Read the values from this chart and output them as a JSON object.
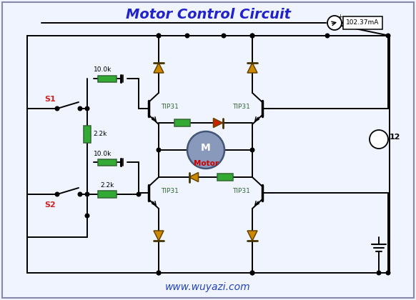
{
  "title": "Motor Control Circuit",
  "title_color": "#2222CC",
  "title_fontsize": 14,
  "bg_color": "#F0F4FF",
  "line_color": "#000000",
  "green_color": "#33AA33",
  "red_color": "#CC2200",
  "motor_fill": "#8899BB",
  "motor_edge": "#445577",
  "orange_diode": "#CC8800",
  "watermark": "www.wuyazi.com",
  "watermark_color": "#2244BB",
  "ammeter_text": "102.37mA",
  "voltage_text": "12",
  "motor_label": "Motor",
  "s1_label": "S1",
  "s2_label": "S2",
  "r1_label": "10.0k",
  "r2_label": "2.2k",
  "r3_label": "10.0k",
  "r4_label": "2.2k"
}
